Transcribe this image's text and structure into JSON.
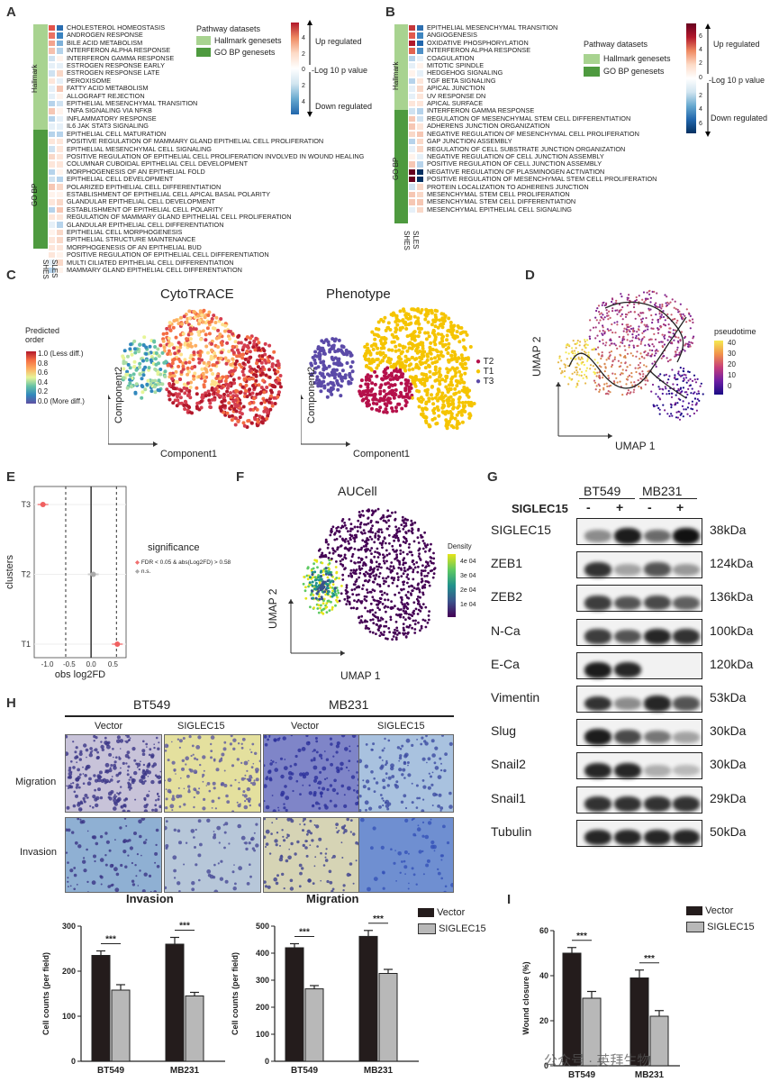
{
  "panels": {
    "A": "A",
    "B": "B",
    "C": "C",
    "D": "D",
    "E": "E",
    "F": "F",
    "G": "G",
    "H": "H",
    "I": "I"
  },
  "panelA": {
    "group_labels": [
      "Hallmark",
      "GO BP"
    ],
    "col_labels": [
      "SHES",
      "SLES"
    ],
    "terms": [
      "CHOLESTEROL HOMEOSTASIS",
      "ANDROGEN RESPONSE",
      "BILE ACID METABOLISM",
      "INTERFERON ALPHA RESPONSE",
      "INTERFERON GAMMA RESPONSE",
      "ESTROGEN RESPONSE EARLY",
      "ESTROGEN RESPONSE LATE",
      "PEROXISOME",
      "FATTY ACID METABOLISM",
      "ALLOGRAFT REJECTION",
      "EPITHELIAL MESENCHYMAL TRANSITION",
      "TNFA SIGNALING VIA NFKB",
      "INFLAMMATORY RESPONSE",
      "IL6 JAK STAT3 SIGNALING",
      "EPITHELIAL CELL MATURATION",
      "POSITIVE REGULATION OF MAMMARY GLAND EPITHELIAL CELL PROLIFERATION",
      "EPITHELIAL MESENCHYMAL CELL SIGNALING",
      "POSITIVE REGULATION OF EPITHELIAL CELL PROLIFERATION INVOLVED IN WOUND HEALING",
      "COLUMNAR CUBOIDAL EPITHELIAL CELL DEVELOPMENT",
      "MORPHOGENESIS OF AN EPITHELIAL FOLD",
      "EPITHELIAL CELL DEVELOPMENT",
      "POLARIZED EPITHELIAL CELL DIFFERENTIATION",
      "ESTABLISHMENT OF EPITHELIAL CELL APICAL BASAL POLARITY",
      "GLANDULAR EPITHELIAL CELL DEVELOPMENT",
      "ESTABLISHMENT OF EPITHELIAL CELL POLARITY",
      "REGULATION OF MAMMARY GLAND EPITHELIAL CELL PROLIFERATION",
      "GLANDULAR EPITHELIAL CELL DIFFERENTIATION",
      "EPITHELIAL CELL MORPHOGENESIS",
      "EPITHELIAL STRUCTURE MAINTENANCE",
      "MORPHOGENESIS OF AN EPITHELIAL BUD",
      "POSITIVE REGULATION OF EPITHELIAL CELL DIFFERENTIATION",
      "MULTI CILIATED EPITHELIAL CELL DIFFERENTIATION",
      "MAMMARY GLAND EPITHELIAL CELL DIFFERENTIATION"
    ],
    "legend_title": "Pathway datasets",
    "legend_items": [
      "Hallmark genesets",
      "GO BP genesets"
    ],
    "scale_labels": [
      "Up regulated",
      "-Log 10 p value",
      "Down regulated"
    ],
    "scale_ticks_up": [
      "4",
      "2"
    ],
    "scale_zero": "0",
    "scale_ticks_down": [
      "2",
      "4"
    ]
  },
  "panelB": {
    "group_labels": [
      "Hallmark",
      "GO BP"
    ],
    "col_labels": [
      "SHES",
      "SLES"
    ],
    "terms": [
      "EPITHELIAL MESENCHYMAL TRANSITION",
      "ANGIOGENESIS",
      "OXIDATIVE PHOSPHORYLATION",
      "INTERFERON ALPHA RESPONSE",
      "COAGULATION",
      "MITOTIC SPINDLE",
      "HEDGEHOG SIGNALING",
      "TGF BETA SIGNALING",
      "APICAL JUNCTION",
      "UV RESPONSE DN",
      "APICAL SURFACE",
      "INTERFERON GAMMA RESPONSE",
      "REGULATION OF MESENCHYMAL STEM CELL DIFFERENTIATION",
      "ADHERENS JUNCTION ORGANIZATION",
      "NEGATIVE REGULATION OF MESENCHYMAL CELL PROLIFERATION",
      "GAP JUNCTION ASSEMBLY",
      "REGULATION OF CELL SUBSTRATE JUNCTION ORGANIZATION",
      "NEGATIVE REGULATION OF CELL JUNCTION ASSEMBLY",
      "POSITIVE REGULATION OF CELL JUNCTION ASSEMBLY",
      "NEGATIVE REGULATION OF PLASMINOGEN ACTIVATION",
      "POSITIVE REGULATION OF MESENCHYMAL STEM CELL PROLIFERATION",
      "PROTEIN LOCALIZATION TO ADHERENS JUNCTION",
      "MESENCHYMAL STEM CELL PROLIFERATION",
      "MESENCHYMAL STEM CELL DIFFERENTIATION",
      "MESENCHYMAL EPITHELIAL CELL SIGNALING"
    ],
    "legend_title": "Pathway datasets",
    "legend_items": [
      "Hallmark genesets",
      "GO BP genesets"
    ],
    "scale_labels": [
      "Up regulated",
      "-Log 10 p value",
      "Down regulated"
    ],
    "scale_ticks_up": [
      "6",
      "4",
      "2"
    ],
    "scale_zero": "0",
    "scale_ticks_down": [
      "2",
      "4",
      "6"
    ]
  },
  "panelC": {
    "left_title": "CytoTRACE",
    "right_title": "Phenotype",
    "xlabel": "Component1",
    "ylabel": "Component2",
    "legend_title": "Predicted order",
    "legend_ticks": [
      "1.0 (Less diff.)",
      "0.8",
      "0.6",
      "0.4",
      "0.2",
      "0.0 (More diff.)"
    ],
    "phenotype_legend": [
      "T2",
      "T1",
      "T3"
    ]
  },
  "panelD": {
    "xlabel": "UMAP 1",
    "ylabel": "UMAP 2",
    "legend_title": "pseudotime",
    "legend_ticks": [
      "40",
      "30",
      "20",
      "10",
      "0"
    ]
  },
  "panelE": {
    "xlabel": "obs log2FD",
    "ylabel": "clusters",
    "legend_title": "significance",
    "legend_items": [
      "FDR < 0.05 & abs(Log2FD) > 0.58",
      "n.s."
    ],
    "clusters": [
      "T3",
      "T2",
      "T1"
    ],
    "x_ticks": [
      "-1.0",
      "-0.5",
      "0.0",
      "0.5"
    ],
    "chart_data": {
      "type": "scatter",
      "title": "",
      "xlabel": "obs log2FD",
      "ylabel": "clusters",
      "categories": [
        "T3",
        "T2",
        "T1"
      ],
      "values": [
        -1.1,
        0.05,
        0.6
      ],
      "significant": [
        true,
        false,
        true
      ],
      "xlim": [
        -1.3,
        0.8
      ],
      "thresholds": [
        -0.58,
        0.58
      ]
    }
  },
  "panelF": {
    "title": "AUCell",
    "xlabel": "UMAP 1",
    "ylabel": "UMAP 2",
    "legend_title": "Density",
    "legend_ticks": [
      "4e 04",
      "3e 04",
      "2e 04",
      "1e 04"
    ]
  },
  "panelG": {
    "cell_lines": [
      "BT549",
      "MB231"
    ],
    "treatment_label": "SIGLEC15",
    "lane_signs": [
      "-",
      "+",
      "-",
      "+"
    ],
    "rows": [
      {
        "name": "SIGLEC15",
        "kda": "38kDa",
        "intensity": [
          0.45,
          0.95,
          0.6,
          1.0
        ]
      },
      {
        "name": "ZEB1",
        "kda": "124kDa",
        "intensity": [
          0.85,
          0.35,
          0.7,
          0.4
        ]
      },
      {
        "name": "ZEB2",
        "kda": "136kDa",
        "intensity": [
          0.8,
          0.7,
          0.75,
          0.65
        ]
      },
      {
        "name": "N-Ca",
        "kda": "100kDa",
        "intensity": [
          0.8,
          0.7,
          0.9,
          0.85
        ]
      },
      {
        "name": "E-Ca",
        "kda": "120kDa",
        "intensity": [
          0.95,
          0.9,
          0.0,
          0.0
        ]
      },
      {
        "name": "Vimentin",
        "kda": "53kDa",
        "intensity": [
          0.85,
          0.45,
          0.9,
          0.7
        ]
      },
      {
        "name": "Slug",
        "kda": "30kDa",
        "intensity": [
          0.95,
          0.75,
          0.55,
          0.35
        ]
      },
      {
        "name": "Snail2",
        "kda": "30kDa",
        "intensity": [
          0.9,
          0.9,
          0.3,
          0.25
        ]
      },
      {
        "name": "Snail1",
        "kda": "29kDa",
        "intensity": [
          0.85,
          0.85,
          0.85,
          0.85
        ]
      },
      {
        "name": "Tubulin",
        "kda": "50kDa",
        "intensity": [
          0.9,
          0.9,
          0.9,
          0.9
        ]
      }
    ]
  },
  "panelH": {
    "cell_lines": [
      "BT549",
      "MB231"
    ],
    "conditions": [
      "Vector",
      "SIGLEC15",
      "Vector",
      "SIGLEC15"
    ],
    "row_labels": [
      "Migration",
      "Invasion"
    ],
    "legend_items": [
      "Vector",
      "SIGLEC15"
    ],
    "sig": "***"
  },
  "chart_data": [
    {
      "type": "bar",
      "title": "Invasion",
      "xlabel": "",
      "ylabel": "Cell counts (per field)",
      "categories": [
        "BT549",
        "MB231"
      ],
      "series": [
        {
          "name": "Vector",
          "values": [
            235,
            260
          ]
        },
        {
          "name": "SIGLEC15",
          "values": [
            158,
            145
          ]
        }
      ],
      "errors": [
        [
          10,
          15
        ],
        [
          12,
          8
        ]
      ],
      "ylim": [
        0,
        300
      ],
      "yticks": [
        "0",
        "100",
        "200",
        "300"
      ]
    },
    {
      "type": "bar",
      "title": "Migration",
      "xlabel": "",
      "ylabel": "Cell counts (per field)",
      "categories": [
        "BT549",
        "MB231"
      ],
      "series": [
        {
          "name": "Vector",
          "values": [
            420,
            462
          ]
        },
        {
          "name": "SIGLEC15",
          "values": [
            268,
            325
          ]
        }
      ],
      "errors": [
        [
          15,
          22
        ],
        [
          12,
          15
        ]
      ],
      "ylim": [
        0,
        500
      ],
      "yticks": [
        "0",
        "100",
        "200",
        "300",
        "400",
        "500"
      ]
    },
    {
      "type": "bar",
      "title": "",
      "xlabel": "",
      "ylabel": "Wound closure (%)",
      "categories": [
        "BT549",
        "MB231"
      ],
      "series": [
        {
          "name": "Vector",
          "values": [
            50,
            39
          ]
        },
        {
          "name": "SIGLEC15",
          "values": [
            30,
            22
          ]
        }
      ],
      "errors": [
        [
          2.5,
          3.5
        ],
        [
          3,
          2.5
        ]
      ],
      "ylim": [
        0,
        60
      ],
      "yticks": [
        "0",
        "20",
        "40",
        "60"
      ]
    }
  ],
  "watermark": "公众号 · 英拜生物"
}
